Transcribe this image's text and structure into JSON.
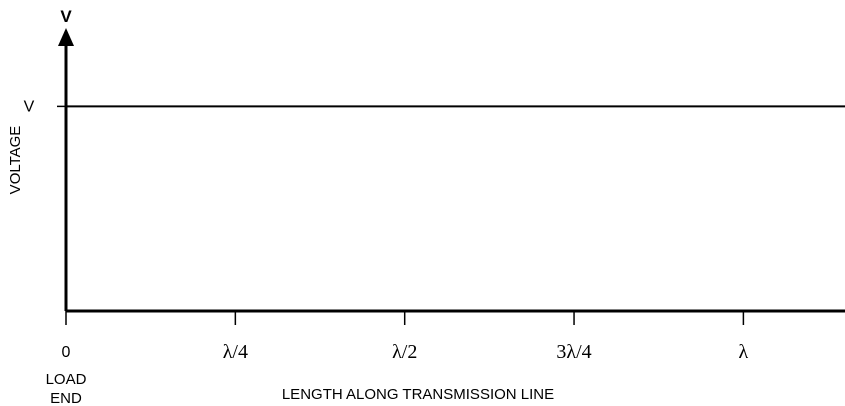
{
  "chart_data": {
    "type": "line",
    "y_axis_top_label": "V",
    "ylabel": "VOLTAGE",
    "xlabel": "LENGTH ALONG TRANSMISSION LINE",
    "x_origin_label": "0",
    "x_origin_sublabel_line1": "LOAD",
    "x_origin_sublabel_line2": "END",
    "x_ticks": [
      {
        "value": 0.25,
        "label": "λ/4"
      },
      {
        "value": 0.5,
        "label": "λ/2"
      },
      {
        "value": 0.75,
        "label": "3λ/4"
      },
      {
        "value": 1.0,
        "label": "λ"
      }
    ],
    "y_ticks": [
      {
        "value": 1.0,
        "label": "V"
      }
    ],
    "xlim": [
      0,
      1.15
    ],
    "ylim": [
      0,
      1.3
    ],
    "series": [
      {
        "x": [
          0,
          1.15
        ],
        "y": [
          1.0,
          1.0
        ],
        "color": "#000000"
      }
    ]
  }
}
